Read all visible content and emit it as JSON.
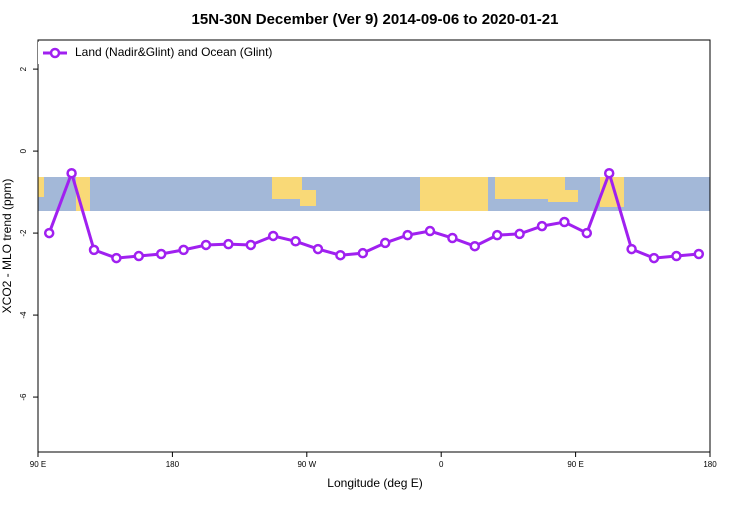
{
  "chart_data": {
    "type": "line",
    "title": "15N-30N December (Ver 9)   2014-09-06 to 2020-01-21",
    "x_label": "Longitude (deg E)",
    "y_label": "XCO2 - MLO trend (ppm)",
    "x": [
      97.5,
      112.5,
      127.5,
      142.5,
      157.5,
      172.5,
      187.5,
      202.5,
      217.5,
      232.5,
      247.5,
      262.5,
      277.5,
      292.5,
      307.5,
      322.5,
      337.5,
      352.5,
      367.5,
      382.5,
      397.5,
      412.5,
      427.5,
      442.5,
      457.5,
      472.5,
      487.5,
      502.5,
      517.5,
      532.5
    ],
    "series": [
      {
        "name": "Land (Nadir&Glint) and Ocean (Glint)",
        "color": "#a020f0",
        "values": [
          -2.0,
          -0.54,
          -2.41,
          -2.61,
          -2.56,
          -2.51,
          -2.41,
          -2.29,
          -2.27,
          -2.29,
          -2.07,
          -2.2,
          -2.39,
          -2.54,
          -2.49,
          -2.24,
          -2.05,
          -1.95,
          -2.12,
          -2.32,
          -2.05,
          -2.02,
          -1.83,
          -1.73,
          -2.0,
          -0.54,
          -2.39,
          -2.61,
          -2.56,
          -2.51
        ]
      }
    ],
    "xlim": [
      90,
      540
    ],
    "xticks": [
      {
        "value": 90,
        "label": "90 E"
      },
      {
        "value": 180,
        "label": "180"
      },
      {
        "value": 270,
        "label": "90 W"
      },
      {
        "value": 360,
        "label": "0"
      },
      {
        "value": 450,
        "label": "90 E"
      },
      {
        "value": 540,
        "label": "180"
      }
    ],
    "ylim": [
      -7.34,
      2.71
    ],
    "yticks": [
      2,
      0,
      -2,
      -4,
      -6
    ],
    "legend": "top-left"
  }
}
